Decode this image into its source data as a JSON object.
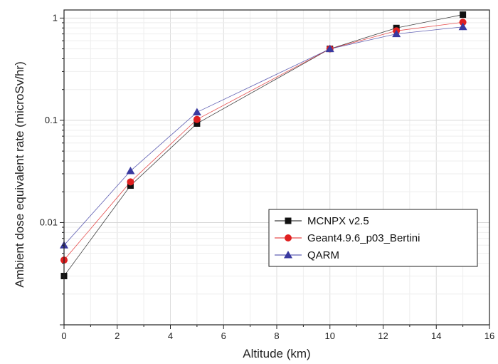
{
  "chart_data": {
    "type": "line",
    "title": "",
    "xlabel": "Altitude (km)",
    "ylabel": "Ambient dose equivalent rate (microSv/hr)",
    "xlim": [
      0,
      16
    ],
    "ylim": [
      0.001,
      1.2
    ],
    "y_scale": "log",
    "grid": true,
    "legend_position": "lower-right",
    "x_ticks": [
      0,
      2,
      4,
      6,
      8,
      10,
      12,
      14,
      16
    ],
    "x_tick_labels": [
      "0",
      "2",
      "4",
      "6",
      "8",
      "10",
      "12",
      "14",
      "16"
    ],
    "y_ticks": [
      0.01,
      0.1,
      1
    ],
    "y_tick_labels": [
      "0.01",
      "0.1",
      "1"
    ],
    "series": [
      {
        "name": "MCNPX v2.5",
        "marker": "square",
        "color": "#111111",
        "x": [
          0,
          2.5,
          5,
          10,
          12.5,
          15
        ],
        "y": [
          0.003,
          0.023,
          0.093,
          0.5,
          0.8,
          1.08
        ]
      },
      {
        "name": "Geant4.9.6_p03_Bertini",
        "marker": "circle",
        "color": "#e02020",
        "x": [
          0,
          2.5,
          5,
          10,
          12.5,
          15
        ],
        "y": [
          0.0043,
          0.025,
          0.102,
          0.5,
          0.75,
          0.91
        ]
      },
      {
        "name": "QARM",
        "marker": "triangle",
        "color": "#3a3aa0",
        "x": [
          0,
          2.5,
          5,
          10,
          12.5,
          15
        ],
        "y": [
          0.006,
          0.032,
          0.12,
          0.5,
          0.7,
          0.82
        ]
      }
    ]
  }
}
